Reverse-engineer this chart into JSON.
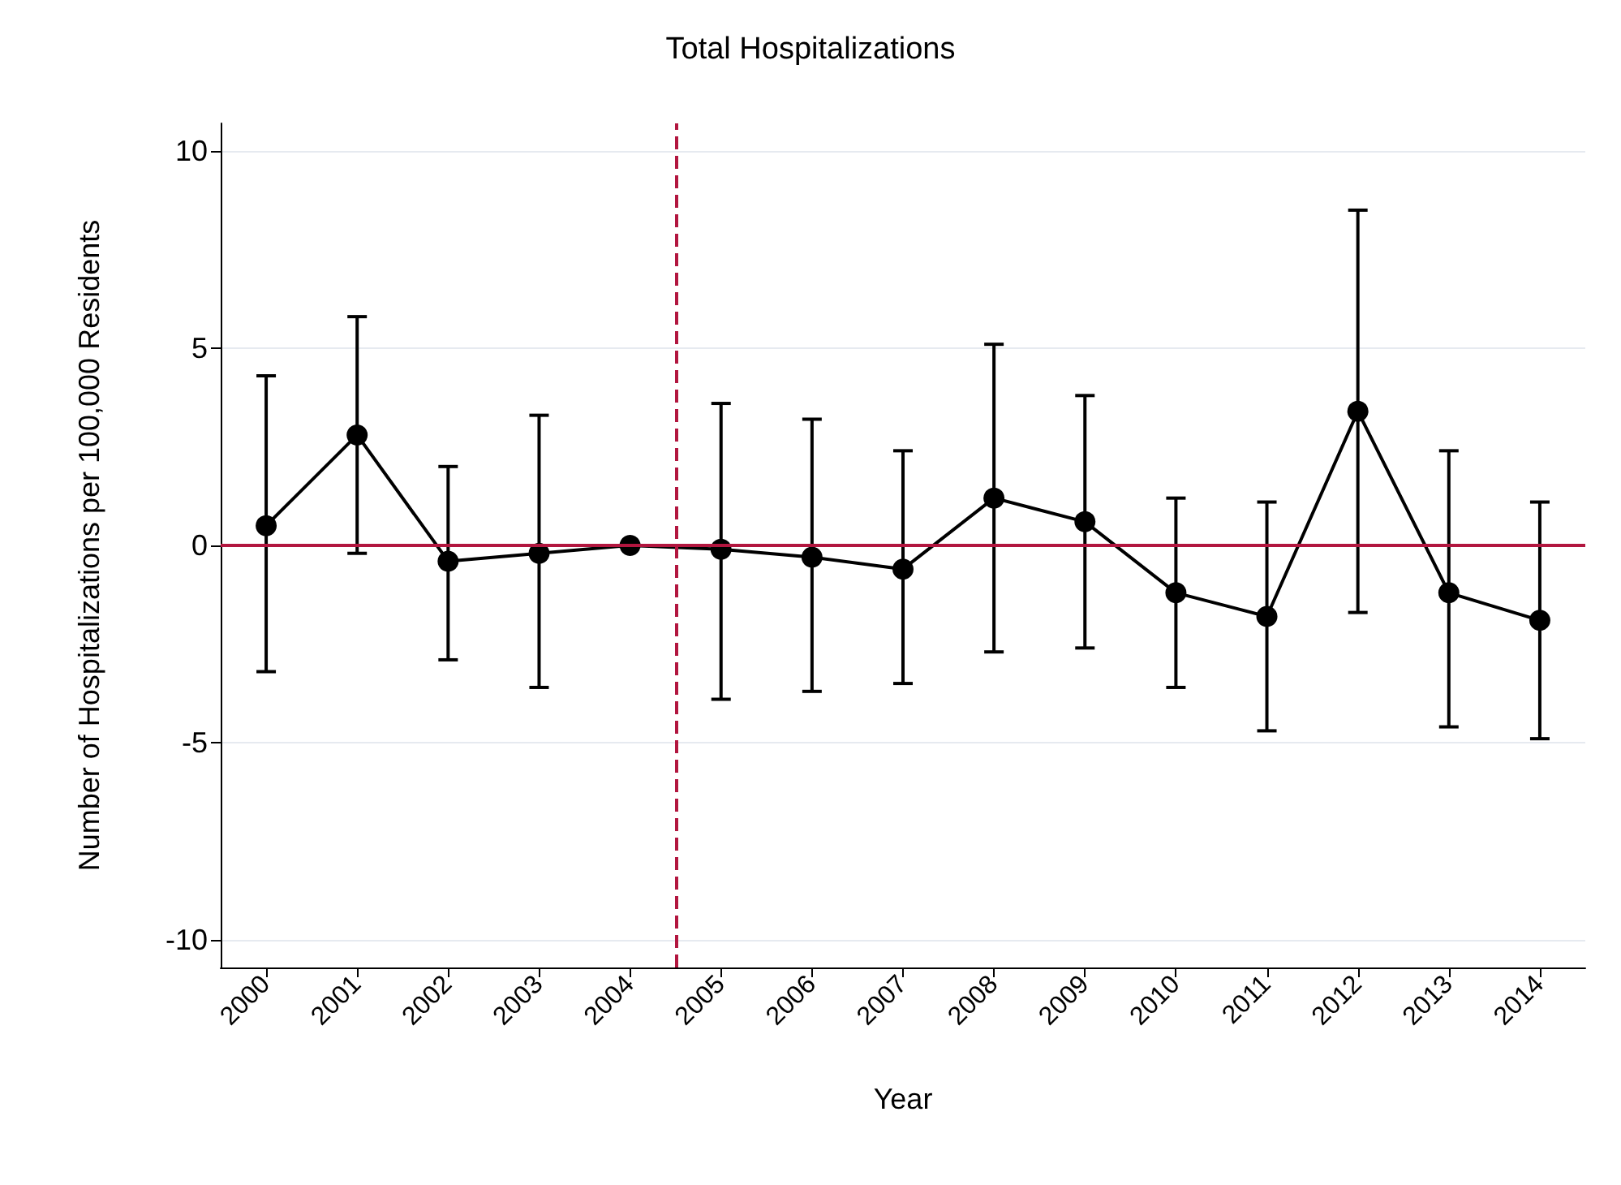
{
  "chart_data": {
    "type": "line",
    "title": "Total Hospitalizations",
    "xlabel": "Year",
    "ylabel": "Number of Hospitalizations per 100,000 Residents",
    "x": [
      2000,
      2001,
      2002,
      2003,
      2004,
      2005,
      2006,
      2007,
      2008,
      2009,
      2010,
      2011,
      2012,
      2013,
      2014
    ],
    "series": [
      {
        "color": "#000000",
        "values": [
          0.5,
          2.8,
          -0.4,
          -0.2,
          0,
          -0.1,
          -0.3,
          -0.6,
          1.2,
          0.6,
          -1.2,
          -1.8,
          3.4,
          -1.2,
          -1.9
        ],
        "errors": [
          [
            -3.2,
            4.3
          ],
          [
            -0.2,
            5.8
          ],
          [
            -2.9,
            2.0
          ],
          [
            -3.6,
            3.3
          ],
          null,
          [
            -3.9,
            3.6
          ],
          [
            -3.7,
            3.2
          ],
          [
            -3.5,
            2.4
          ],
          [
            -2.7,
            5.1
          ],
          [
            -2.6,
            3.8
          ],
          [
            -3.6,
            1.2
          ],
          [
            -4.7,
            1.1
          ],
          [
            -1.7,
            8.5
          ],
          [
            -4.6,
            2.4
          ],
          [
            -4.9,
            1.1
          ]
        ]
      }
    ],
    "xlim": [
      1999.5,
      2014.5
    ],
    "xticks": [
      2000,
      2001,
      2002,
      2003,
      2004,
      2005,
      2006,
      2007,
      2008,
      2009,
      2010,
      2011,
      2012,
      2013,
      2014
    ],
    "ylim": [
      -10.7,
      10.7
    ],
    "yticks": [
      -10,
      -5,
      0,
      5,
      10
    ],
    "grid": "y",
    "marker": "circle",
    "line_style": "solid",
    "ref_lines": [
      {
        "axis": "y",
        "value": 0,
        "color": "#b2163f",
        "line_style": "solid"
      },
      {
        "axis": "x",
        "value": 2004.5,
        "color": "#b2163f",
        "line_style": "dashed"
      }
    ]
  }
}
